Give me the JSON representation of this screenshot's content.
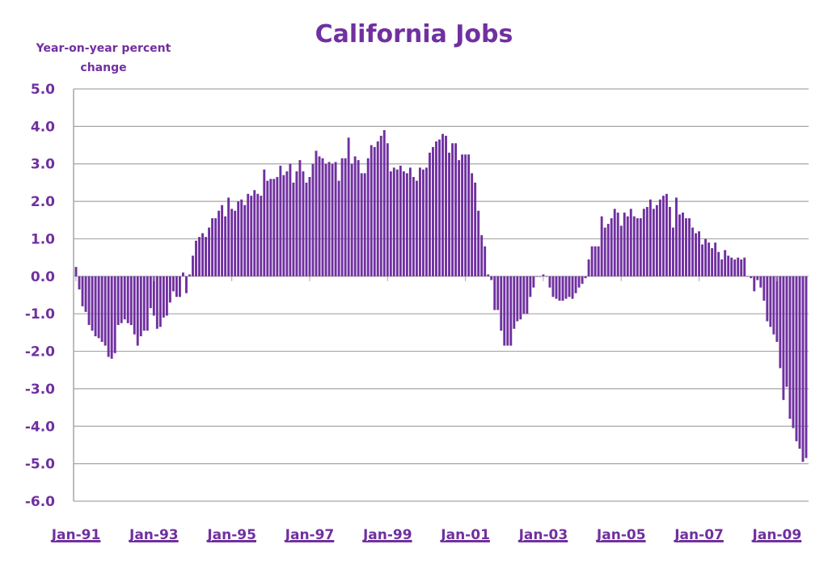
{
  "colors": {
    "bar": "#7030A0",
    "text": "#7030A0",
    "grid": "#A6A6A6",
    "axis": "#A6A6A6"
  },
  "chart_data": {
    "type": "bar",
    "title": "California Jobs",
    "ylabel_lines": [
      "Year-on-year percent",
      "change"
    ],
    "xlabel": "",
    "ylim": [
      -6.0,
      5.0
    ],
    "ytick_labels": [
      "5.0",
      "4.0",
      "3.0",
      "2.0",
      "1.0",
      "0.0",
      "-1.0",
      "-2.0",
      "-3.0",
      "-4.0",
      "-5.0",
      "-6.0"
    ],
    "xtick_labels": [
      "Jan-91",
      "Jan-93",
      "Jan-95",
      "Jan-97",
      "Jan-99",
      "Jan-01",
      "Jan-03",
      "Jan-05",
      "Jan-07",
      "Jan-09"
    ],
    "grid": true,
    "frequency": "monthly",
    "values_by_year": {
      "1991": [
        0.25,
        -0.35,
        -0.8,
        -0.95,
        -1.3,
        -1.45,
        -1.6,
        -1.65,
        -1.75,
        -1.85,
        -2.15,
        -2.2
      ],
      "1992": [
        -2.05,
        -1.3,
        -1.25,
        -1.15,
        -1.25,
        -1.3,
        -1.55,
        -1.85,
        -1.6,
        -1.45,
        -1.45,
        -0.85
      ],
      "1993": [
        -1.05,
        -1.4,
        -1.35,
        -1.1,
        -1.05,
        -0.7,
        -0.4,
        -0.55,
        -0.55,
        0.1,
        -0.45,
        0.05
      ],
      "1994": [
        0.55,
        0.95,
        1.05,
        1.15,
        1.05,
        1.3,
        1.55,
        1.55,
        1.75,
        1.9,
        1.6,
        2.1
      ],
      "1995": [
        1.8,
        1.75,
        2.0,
        2.05,
        1.9,
        2.2,
        2.15,
        2.3,
        2.2,
        2.15,
        2.85,
        2.55
      ],
      "1996": [
        2.6,
        2.6,
        2.65,
        2.95,
        2.7,
        2.8,
        3.0,
        2.5,
        2.8,
        3.1,
        2.8,
        2.5
      ],
      "1997": [
        2.65,
        3.0,
        3.35,
        3.2,
        3.15,
        3.0,
        3.05,
        3.0,
        3.05,
        2.55,
        3.15,
        3.15
      ],
      "1998": [
        3.7,
        3.0,
        3.2,
        3.1,
        2.75,
        2.75,
        3.15,
        3.5,
        3.45,
        3.6,
        3.75,
        3.9
      ],
      "1999": [
        3.55,
        2.8,
        2.9,
        2.85,
        2.95,
        2.8,
        2.75,
        2.9,
        2.65,
        2.55,
        2.9,
        2.85
      ],
      "2000": [
        2.9,
        3.3,
        3.45,
        3.6,
        3.65,
        3.8,
        3.75,
        3.3,
        3.55,
        3.55,
        3.1,
        3.25
      ],
      "2001": [
        3.25,
        3.25,
        2.75,
        2.5,
        1.75,
        1.1,
        0.8,
        0.05,
        -0.1,
        -0.9,
        -0.9,
        -1.45
      ],
      "2002": [
        -1.85,
        -1.85,
        -1.85,
        -1.4,
        -1.2,
        -1.15,
        -1.0,
        -1.0,
        -0.55,
        -0.3,
        0.0,
        0.0
      ],
      "2003": [
        0.05,
        0.0,
        -0.3,
        -0.55,
        -0.6,
        -0.65,
        -0.65,
        -0.6,
        -0.55,
        -0.6,
        -0.45,
        -0.3
      ],
      "2004": [
        -0.2,
        -0.05,
        0.45,
        0.8,
        0.8,
        0.8,
        1.6,
        1.3,
        1.4,
        1.55,
        1.8,
        1.7
      ],
      "2005": [
        1.35,
        1.7,
        1.6,
        1.8,
        1.6,
        1.55,
        1.55,
        1.8,
        1.85,
        2.05,
        1.8,
        1.9
      ],
      "2006": [
        2.05,
        2.15,
        2.2,
        1.85,
        1.3,
        2.1,
        1.65,
        1.7,
        1.55,
        1.55,
        1.3,
        1.15
      ],
      "2007": [
        1.2,
        0.85,
        1.0,
        0.9,
        0.75,
        0.9,
        0.65,
        0.45,
        0.7,
        0.55,
        0.5,
        0.45
      ],
      "2008": [
        0.5,
        0.45,
        0.5,
        0.0,
        -0.05,
        -0.4,
        -0.1,
        -0.3,
        -0.65,
        -1.2,
        -1.35,
        -1.55
      ],
      "2009": [
        -1.75,
        -2.45,
        -3.3,
        -2.95,
        -3.8,
        -4.05,
        -4.4,
        -4.6,
        -4.95,
        -4.85
      ]
    }
  }
}
